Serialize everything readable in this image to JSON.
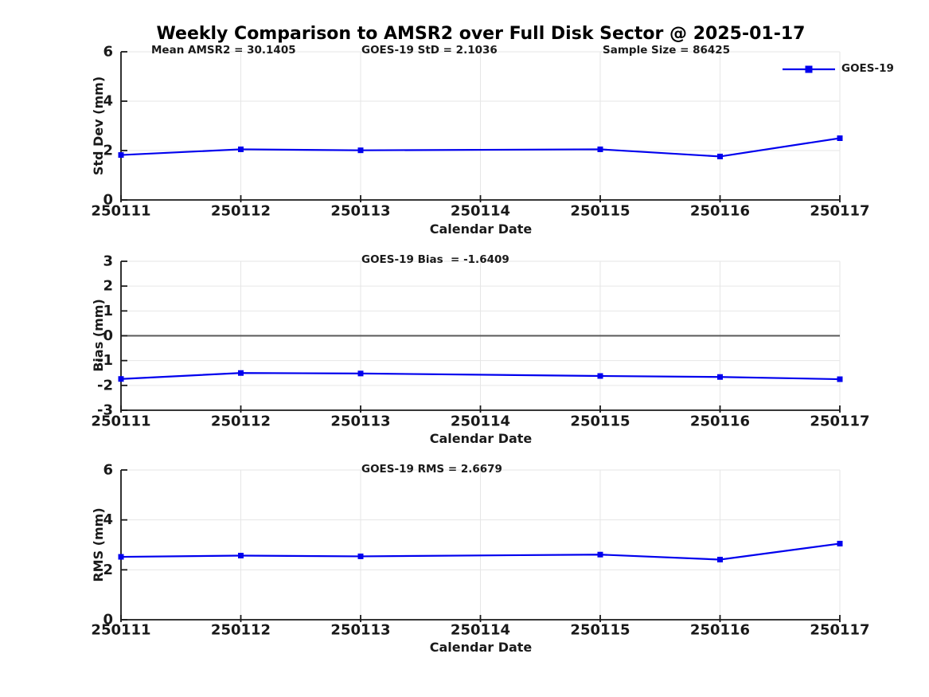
{
  "figure": {
    "title": "Weekly Comparison to AMSR2 over Full Disk Sector @ 2025-01-17",
    "background": "#ffffff"
  },
  "legend": {
    "label": "GOES-19",
    "color": "#0000EE",
    "marker": "square",
    "position": "top-right"
  },
  "colors": {
    "line": "#0000EE",
    "grid": "#E6E6E6",
    "axis": "#1A1A1A",
    "text": "#1A1A1A",
    "zero_line": "#595959",
    "title": "#000000"
  },
  "chart_data": [
    {
      "type": "line",
      "panel": "std-dev",
      "ylabel": "Std Dev (mm)",
      "xlabel": "Calendar Date",
      "ylim": [
        0,
        6
      ],
      "yticks": [
        0,
        2,
        4,
        6
      ],
      "grid": true,
      "legend_entry": "GOES-19",
      "categories": [
        "250111",
        "250112",
        "250113",
        "250114",
        "250115",
        "250116",
        "250117"
      ],
      "annotations": [
        {
          "text": "Mean AMSR2 = 30.1405"
        },
        {
          "text": "GOES-19 StD = 2.1036"
        },
        {
          "text": "Sample Size = 86425"
        }
      ],
      "series": [
        {
          "name": "GOES-19",
          "color": "#0000EE",
          "marker": "square",
          "values": [
            1.82,
            2.05,
            2.01,
            null,
            2.05,
            1.76,
            2.5
          ]
        }
      ]
    },
    {
      "type": "line",
      "panel": "bias",
      "ylabel": "Bias (mm)",
      "xlabel": "Calendar Date",
      "ylim": [
        -3,
        3
      ],
      "yticks": [
        -3,
        -2,
        -1,
        0,
        1,
        2,
        3
      ],
      "grid": true,
      "zero_line": {
        "y": 0
      },
      "categories": [
        "250111",
        "250112",
        "250113",
        "250114",
        "250115",
        "250116",
        "250117"
      ],
      "annotations": [
        {
          "text": "GOES-19 Bias  = -1.6409"
        }
      ],
      "series": [
        {
          "name": "GOES-19",
          "color": "#0000EE",
          "marker": "square",
          "values": [
            -1.74,
            -1.5,
            -1.52,
            null,
            -1.62,
            -1.66,
            -1.75
          ]
        }
      ]
    },
    {
      "type": "line",
      "panel": "rms",
      "ylabel": "RMS (mm)",
      "xlabel": "Calendar Date",
      "ylim": [
        0,
        6
      ],
      "yticks": [
        0,
        2,
        4,
        6
      ],
      "grid": true,
      "categories": [
        "250111",
        "250112",
        "250113",
        "250114",
        "250115",
        "250116",
        "250117"
      ],
      "annotations": [
        {
          "text": "GOES-19 RMS = 2.6679"
        }
      ],
      "series": [
        {
          "name": "GOES-19",
          "color": "#0000EE",
          "marker": "square",
          "values": [
            2.52,
            2.57,
            2.54,
            null,
            2.61,
            2.41,
            3.05
          ]
        }
      ]
    }
  ]
}
